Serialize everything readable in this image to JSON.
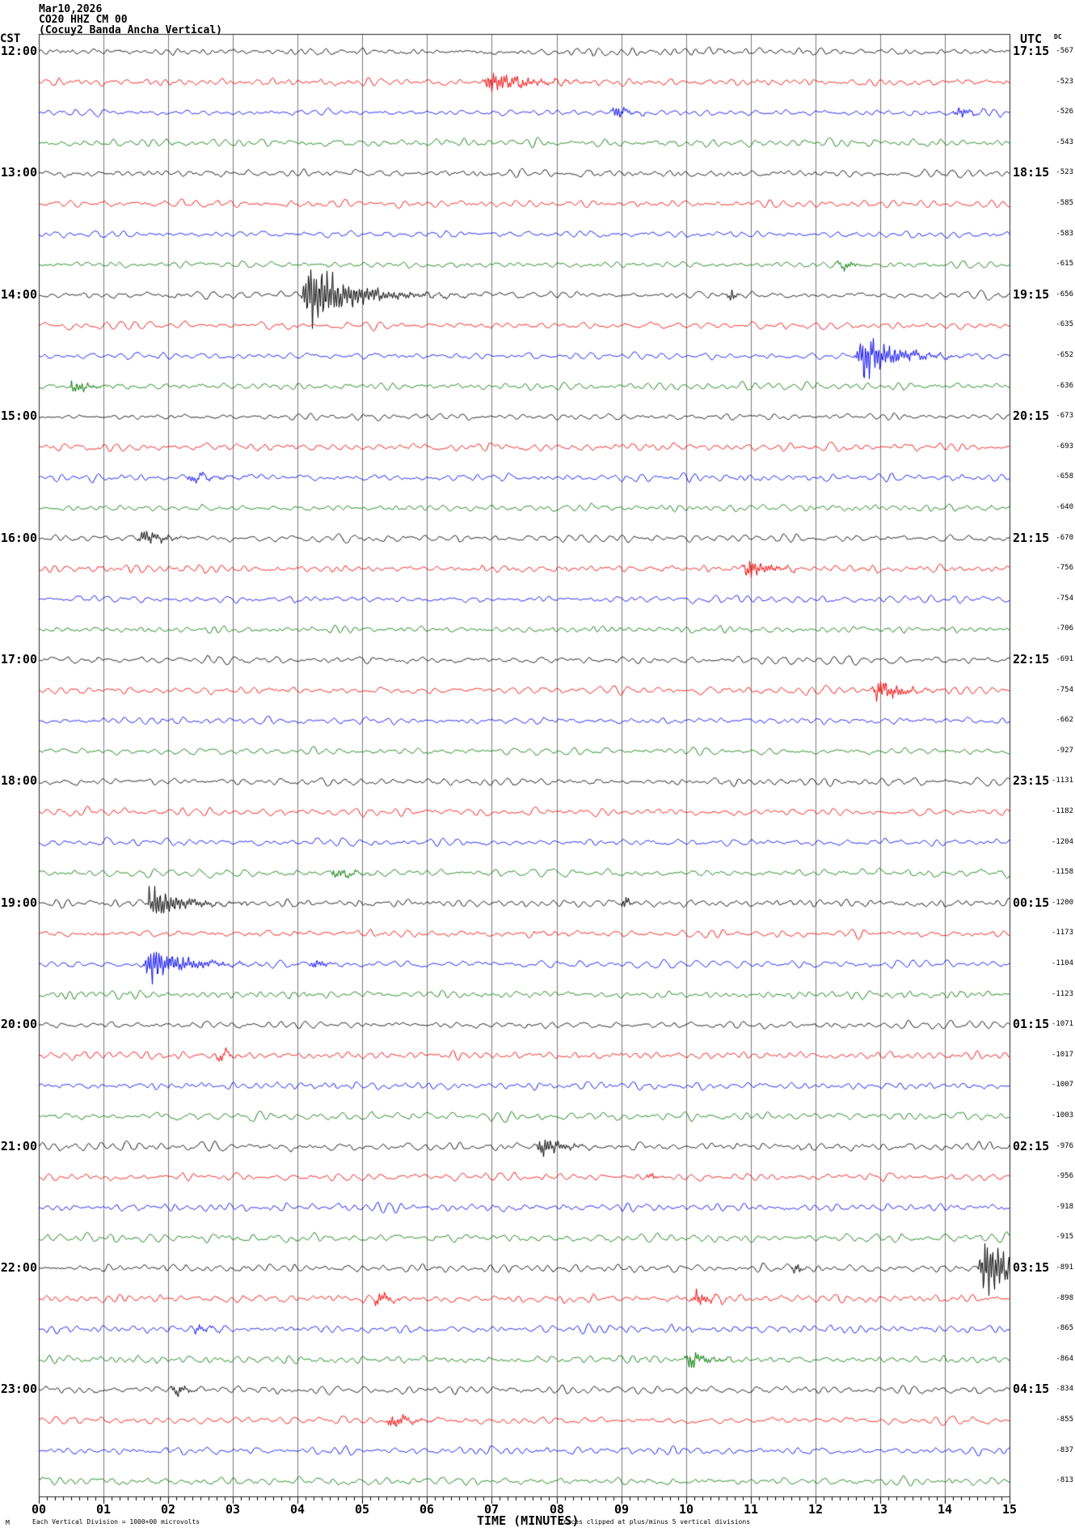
{
  "header": {
    "date": "Mar10,2026",
    "station_line": "CO20 HHZ CM 00",
    "description_line": "(Cocuy2 Banda Ancha Vertical)"
  },
  "axes": {
    "left_label": "CST",
    "right_label": "UTC",
    "dc_label": "DC",
    "x_title": "TIME (MINUTES)",
    "x_ticks": [
      "00",
      "01",
      "02",
      "03",
      "04",
      "05",
      "06",
      "07",
      "08",
      "09",
      "10",
      "11",
      "12",
      "13",
      "14",
      "15"
    ]
  },
  "footer": {
    "watermark": "M",
    "scale_note": "Each Vertical Division = 1000+00 microvolts",
    "clip_note": "Traces clipped at plus/minus 5 vertical divisions"
  },
  "chart_data": {
    "type": "line",
    "kind": "helicorder-seismogram",
    "title": "CO20 HHZ CM 00 (Cocuy2 Banda Ancha Vertical) Mar10,2026",
    "xlabel": "TIME (MINUTES)",
    "x_range_minutes": [
      0,
      15
    ],
    "minutes_per_line": 15,
    "major_tick_every_min": 1,
    "minor_ticks_per_minute": 8,
    "grid": true,
    "grid_color": "#7a7a7a",
    "border_color": "#222222",
    "trace_colors": [
      "#000000",
      "#f00000",
      "#0000f0",
      "#007800"
    ],
    "clip_divisions": 5,
    "rows": [
      {
        "local": "12:00",
        "utc": "17:15",
        "dc": "-567",
        "noise": 4.0,
        "events": []
      },
      {
        "dc": "-523",
        "noise": 4.2,
        "events": [
          {
            "t": 6.9,
            "a": 14,
            "d": 0.9
          }
        ]
      },
      {
        "dc": "-526",
        "noise": 3.6,
        "events": [
          {
            "t": 8.85,
            "a": 8,
            "d": 0.35
          },
          {
            "t": 14.15,
            "a": 7,
            "d": 0.3
          }
        ]
      },
      {
        "dc": "-543",
        "noise": 4.6,
        "events": []
      },
      {
        "local": "13:00",
        "utc": "18:15",
        "dc": "-523",
        "noise": 4.2,
        "events": []
      },
      {
        "dc": "-585",
        "noise": 4.4,
        "events": []
      },
      {
        "dc": "-583",
        "noise": 3.8,
        "events": []
      },
      {
        "dc": "-615",
        "noise": 3.6,
        "events": [
          {
            "t": 12.35,
            "a": 6,
            "d": 0.4
          }
        ]
      },
      {
        "local": "14:00",
        "utc": "19:15",
        "dc": "-656",
        "noise": 4.2,
        "events": [
          {
            "t": 4.1,
            "a": 42,
            "d": 1.1
          },
          {
            "t": 10.65,
            "a": 9,
            "d": 0.1
          }
        ]
      },
      {
        "dc": "-635",
        "noise": 4.4,
        "events": []
      },
      {
        "dc": "-652",
        "noise": 4.0,
        "events": [
          {
            "t": 12.65,
            "a": 30,
            "d": 0.8
          }
        ]
      },
      {
        "dc": "-636",
        "noise": 4.2,
        "events": [
          {
            "t": 0.5,
            "a": 8,
            "d": 0.4
          }
        ]
      },
      {
        "local": "15:00",
        "utc": "20:15",
        "dc": "-673",
        "noise": 3.5,
        "events": []
      },
      {
        "dc": "-693",
        "noise": 4.6,
        "events": []
      },
      {
        "dc": "-658",
        "noise": 4.4,
        "events": [
          {
            "t": 2.3,
            "a": 5,
            "d": 0.7
          }
        ]
      },
      {
        "dc": "-640",
        "noise": 3.8,
        "events": []
      },
      {
        "local": "16:00",
        "utc": "21:15",
        "dc": "-670",
        "noise": 4.4,
        "events": [
          {
            "t": 1.55,
            "a": 10,
            "d": 0.5
          }
        ]
      },
      {
        "dc": "-756",
        "noise": 4.2,
        "events": [
          {
            "t": 10.9,
            "a": 13,
            "d": 0.55
          }
        ]
      },
      {
        "dc": "-754",
        "noise": 4.0,
        "events": []
      },
      {
        "dc": "-706",
        "noise": 3.6,
        "events": []
      },
      {
        "local": "17:00",
        "utc": "22:15",
        "dc": "-691",
        "noise": 4.4,
        "events": []
      },
      {
        "dc": "-754",
        "noise": 4.6,
        "events": [
          {
            "t": 12.9,
            "a": 14,
            "d": 0.6
          }
        ]
      },
      {
        "dc": "-662",
        "noise": 3.8,
        "events": []
      },
      {
        "dc": "-927",
        "noise": 4.0,
        "events": []
      },
      {
        "local": "18:00",
        "utc": "23:15",
        "dc": "-1131",
        "noise": 4.4,
        "events": []
      },
      {
        "dc": "-1182",
        "noise": 4.6,
        "events": []
      },
      {
        "dc": "-1204",
        "noise": 4.2,
        "events": []
      },
      {
        "dc": "-1158",
        "noise": 4.6,
        "events": [
          {
            "t": 4.55,
            "a": 6,
            "d": 0.5
          }
        ]
      },
      {
        "local": "19:00",
        "utc": "00:15",
        "dc": "-1200",
        "noise": 4.4,
        "events": [
          {
            "t": 1.7,
            "a": 20,
            "d": 0.8
          },
          {
            "t": 9.0,
            "a": 8,
            "d": 0.12
          }
        ]
      },
      {
        "dc": "-1173",
        "noise": 4.0,
        "events": []
      },
      {
        "dc": "-1104",
        "noise": 4.4,
        "events": [
          {
            "t": 1.65,
            "a": 24,
            "d": 0.9
          },
          {
            "t": 4.2,
            "a": 6,
            "d": 0.3
          }
        ]
      },
      {
        "dc": "-1123",
        "noise": 4.4,
        "events": []
      },
      {
        "local": "20:00",
        "utc": "01:15",
        "dc": "-1071",
        "noise": 4.2,
        "events": []
      },
      {
        "dc": "-1017",
        "noise": 4.6,
        "events": [
          {
            "t": 2.75,
            "a": 6,
            "d": 0.25
          }
        ]
      },
      {
        "dc": "-1007",
        "noise": 4.2,
        "events": []
      },
      {
        "dc": "-1003",
        "noise": 5.0,
        "events": []
      },
      {
        "local": "21:00",
        "utc": "02:15",
        "dc": "-976",
        "noise": 5.0,
        "events": [
          {
            "t": 7.7,
            "a": 12,
            "d": 0.6
          }
        ]
      },
      {
        "dc": "-956",
        "noise": 4.4,
        "events": [
          {
            "t": 9.4,
            "a": 5,
            "d": 0.15
          }
        ]
      },
      {
        "dc": "-918",
        "noise": 4.6,
        "events": []
      },
      {
        "dc": "-915",
        "noise": 5.2,
        "events": []
      },
      {
        "local": "22:00",
        "utc": "03:15",
        "dc": "-891",
        "noise": 4.6,
        "events": [
          {
            "t": 14.55,
            "a": 40,
            "d": 0.7
          },
          {
            "t": 11.65,
            "a": 8,
            "d": 0.1
          }
        ]
      },
      {
        "dc": "-898",
        "noise": 4.6,
        "events": [
          {
            "t": 5.2,
            "a": 8,
            "d": 0.3
          },
          {
            "t": 10.1,
            "a": 9,
            "d": 0.35
          }
        ]
      },
      {
        "dc": "-865",
        "noise": 4.6,
        "events": [
          {
            "t": 2.4,
            "a": 6,
            "d": 0.3
          }
        ]
      },
      {
        "dc": "-864",
        "noise": 4.4,
        "events": [
          {
            "t": 10.0,
            "a": 10,
            "d": 0.5
          }
        ]
      },
      {
        "local": "23:00",
        "utc": "04:15",
        "dc": "-834",
        "noise": 4.8,
        "events": [
          {
            "t": 2.05,
            "a": 8,
            "d": 0.3
          }
        ]
      },
      {
        "dc": "-855",
        "noise": 4.4,
        "events": [
          {
            "t": 5.4,
            "a": 9,
            "d": 0.5
          }
        ]
      },
      {
        "dc": "-837",
        "noise": 4.4,
        "events": []
      },
      {
        "dc": "-813",
        "noise": 4.6,
        "events": []
      }
    ]
  }
}
